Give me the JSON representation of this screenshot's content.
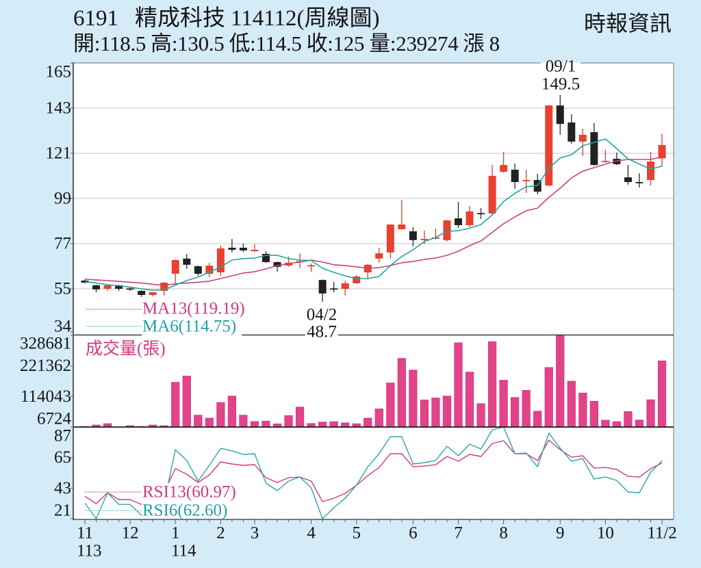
{
  "header": {
    "code": "6191",
    "name": "精成科技",
    "period": "114112(周線圖)",
    "source": "時報資訊",
    "stats": [
      {
        "label": "開",
        "sep": ":",
        "value": "118.5"
      },
      {
        "label": "高",
        "sep": ":",
        "value": "130.5"
      },
      {
        "label": "低",
        "sep": ":",
        "value": "114.5"
      },
      {
        "label": "收",
        "sep": ":",
        "value": "125"
      },
      {
        "label": "量",
        "sep": ":",
        "value": "239274"
      },
      {
        "label": "漲",
        "sep": " ",
        "value": "8"
      }
    ]
  },
  "chart_data": [
    {
      "panel": "price",
      "type": "candlestick",
      "title": "6191 精成科技 114112(周線圖)",
      "xlabel": "",
      "ylabel": "",
      "ylim": [
        34,
        165
      ],
      "yticks": [
        165,
        143,
        121,
        99,
        77,
        55,
        34
      ],
      "grid": true,
      "colors": {
        "up": "#e8412f",
        "down": "#222222"
      },
      "candles": {
        "open": [
          59.0,
          56.7,
          55.0,
          56.7,
          55.2,
          54.0,
          52.0,
          54.0,
          62.3,
          69.7,
          66.0,
          62.3,
          63.0,
          75.0,
          75.0,
          73.3,
          72.0,
          68.0,
          66.3,
          68.0,
          66.0,
          59.3,
          55.2,
          55.0,
          57.7,
          63.0,
          69.7,
          72.7,
          84.0,
          83.0,
          78.7,
          79.7,
          78.7,
          89.3,
          86.0,
          91.9,
          91.7,
          112.0,
          113.0,
          107.5,
          108.0,
          105.3,
          144.3,
          136.0,
          126.7,
          131.3,
          117.0,
          118.3,
          109.3,
          107.0,
          108.0,
          118.5
        ],
        "high": [
          59.5,
          57.0,
          57.0,
          57.0,
          55.8,
          54.3,
          53.5,
          58.3,
          69.3,
          72.0,
          66.3,
          67.7,
          76.0,
          79.3,
          77.0,
          76.7,
          73.3,
          68.3,
          70.7,
          72.3,
          67.3,
          59.5,
          58.3,
          59.0,
          61.7,
          67.0,
          75.0,
          86.5,
          98.3,
          85.0,
          83.3,
          84.3,
          88.5,
          97.3,
          95.3,
          94.3,
          115.3,
          121.7,
          116.0,
          113.0,
          111.0,
          144.5,
          149.5,
          140.0,
          133.0,
          135.7,
          122.7,
          121.3,
          115.3,
          111.3,
          121.7,
          130.5
        ],
        "low": [
          57.7,
          53.3,
          54.0,
          54.0,
          54.0,
          51.0,
          51.3,
          51.7,
          57.3,
          64.7,
          61.3,
          60.7,
          61.3,
          72.7,
          73.0,
          73.0,
          67.7,
          63.3,
          65.7,
          65.0,
          63.3,
          48.7,
          53.3,
          51.7,
          57.3,
          59.7,
          67.7,
          69.7,
          83.7,
          75.7,
          76.7,
          79.0,
          78.0,
          84.7,
          85.0,
          89.0,
          91.0,
          111.5,
          103.7,
          101.7,
          101.0,
          105.0,
          130.0,
          125.7,
          119.7,
          115.0,
          116.5,
          115.3,
          105.7,
          104.3,
          105.3,
          114.5
        ],
        "close": [
          58.0,
          54.7,
          56.7,
          55.0,
          55.0,
          52.0,
          53.3,
          58.0,
          69.0,
          66.7,
          62.3,
          66.3,
          74.7,
          74.0,
          73.7,
          74.0,
          68.0,
          65.7,
          67.7,
          68.5,
          66.5,
          52.7,
          55.0,
          57.7,
          61.0,
          66.7,
          72.3,
          86.3,
          86.3,
          78.7,
          79.3,
          80.0,
          88.3,
          86.0,
          92.7,
          91.7,
          110.0,
          115.3,
          107.0,
          108.0,
          102.3,
          144.3,
          135.3,
          126.7,
          130.0,
          115.3,
          117.3,
          115.7,
          107.0,
          106.7,
          117.0,
          125.0
        ]
      },
      "series": [
        {
          "name": "MA13",
          "legend": "MA13(119.19)",
          "color": "#c8407e",
          "legend_color": "#d2387f",
          "values": [
            59.7,
            59.3,
            59.0,
            58.6,
            58.2,
            57.8,
            57.2,
            56.7,
            57.4,
            57.8,
            58.2,
            58.7,
            60.0,
            61.3,
            62.7,
            63.3,
            64.7,
            66.3,
            67.3,
            68.0,
            69.0,
            68.0,
            66.7,
            66.3,
            65.7,
            65.0,
            65.3,
            66.3,
            67.7,
            68.3,
            69.3,
            70.0,
            71.3,
            73.3,
            76.0,
            78.3,
            82.5,
            86.7,
            90.0,
            93.0,
            94.3,
            99.5,
            104.0,
            109.0,
            112.3,
            114.0,
            115.7,
            117.3,
            118.0,
            118.0,
            118.0,
            119.19
          ]
        },
        {
          "name": "MA6",
          "legend": "MA6(114.75)",
          "color": "#22a3a3",
          "legend_color": "#1ea2a6",
          "values": [
            58.5,
            57.8,
            57.0,
            56.5,
            55.8,
            55.0,
            54.3,
            54.5,
            56.8,
            59.0,
            60.7,
            63.0,
            65.7,
            69.0,
            69.7,
            70.0,
            71.3,
            71.3,
            69.7,
            69.0,
            68.8,
            65.0,
            63.0,
            61.3,
            60.0,
            60.0,
            61.0,
            66.3,
            70.7,
            74.0,
            78.0,
            80.0,
            83.0,
            83.3,
            84.5,
            86.3,
            91.0,
            97.5,
            101.5,
            104.7,
            105.3,
            113.7,
            118.7,
            120.3,
            124.7,
            126.3,
            128.0,
            123.3,
            118.3,
            115.7,
            113.3,
            114.75
          ]
        }
      ],
      "annotations": [
        {
          "index": 21,
          "date": "04/2",
          "value": "48.7",
          "position": "below"
        },
        {
          "index": 42,
          "date": "09/1",
          "value": "149.5",
          "position": "above"
        }
      ]
    },
    {
      "panel": "volume",
      "type": "bar",
      "title": "成交量(張)",
      "ylim": [
        6724,
        328681
      ],
      "yticks": [
        328681,
        221362,
        114043,
        6724
      ],
      "color": "#e3438b",
      "values": [
        9000,
        14000,
        18800,
        6724,
        11600,
        9000,
        14000,
        11600,
        164000,
        186000,
        48600,
        38200,
        93100,
        115600,
        48600,
        26000,
        27800,
        18000,
        47000,
        77000,
        19400,
        24400,
        26000,
        21500,
        18500,
        38200,
        70500,
        161600,
        248000,
        207000,
        102000,
        109000,
        115600,
        302700,
        200000,
        89000,
        306800,
        171300,
        110800,
        135800,
        62400,
        216000,
        328681,
        167700,
        126400,
        97400,
        30900,
        26000,
        61500,
        31500,
        102700,
        239274
      ]
    },
    {
      "panel": "rsi",
      "type": "line",
      "ylim": [
        21,
        87
      ],
      "yticks": [
        87,
        65,
        43,
        21
      ],
      "series": [
        {
          "name": "RSI13",
          "legend": "RSI13(60.97)",
          "color": "#d33a7e",
          "values": [
            37.2,
            31.8,
            39.7,
            34.8,
            34.8,
            31.3,
            32.0,
            40.2,
            57.0,
            53.0,
            47.1,
            52.5,
            61.9,
            60.4,
            59.4,
            59.9,
            50.5,
            47.1,
            50.5,
            51.0,
            48.1,
            33.3,
            35.8,
            39.2,
            45.1,
            52.0,
            57.9,
            67.8,
            67.8,
            58.4,
            58.9,
            59.9,
            65.8,
            62.4,
            67.3,
            65.8,
            75.2,
            77.1,
            67.8,
            67.8,
            62.9,
            77.6,
            70.7,
            65.3,
            66.3,
            57.4,
            57.9,
            56.5,
            51.5,
            51.0,
            57.0,
            60.97
          ]
        },
        {
          "name": "RSI6",
          "legend": "RSI6(62.60)",
          "color": "#2aa5a8",
          "values": [
            32.3,
            21.0,
            39.7,
            31.3,
            31.3,
            23.5,
            24.0,
            32.4,
            70.7,
            62.9,
            48.1,
            59.4,
            71.7,
            69.8,
            67.3,
            67.8,
            46.6,
            41.2,
            48.1,
            51.0,
            43.2,
            21.0,
            28.9,
            35.8,
            45.1,
            58.4,
            67.8,
            80.1,
            80.1,
            60.4,
            61.4,
            62.9,
            73.2,
            66.3,
            74.7,
            71.2,
            85.0,
            87.0,
            67.8,
            68.3,
            58.4,
            82.6,
            71.7,
            62.4,
            64.3,
            49.6,
            51.0,
            48.6,
            40.2,
            39.7,
            54.5,
            62.6
          ]
        }
      ],
      "xticks": [
        {
          "index": 0,
          "label": "11",
          "sublabel": "113"
        },
        {
          "index": 4,
          "label": "12"
        },
        {
          "index": 8,
          "label": "1",
          "sublabel": "114"
        },
        {
          "index": 12,
          "label": "2"
        },
        {
          "index": 15,
          "label": "3"
        },
        {
          "index": 20,
          "label": "4"
        },
        {
          "index": 24,
          "label": "5"
        },
        {
          "index": 29,
          "label": "6"
        },
        {
          "index": 33,
          "label": "7"
        },
        {
          "index": 37,
          "label": "8"
        },
        {
          "index": 42,
          "label": "9"
        },
        {
          "index": 46,
          "label": "10"
        },
        {
          "index": 51,
          "label": "11/2"
        }
      ]
    }
  ]
}
